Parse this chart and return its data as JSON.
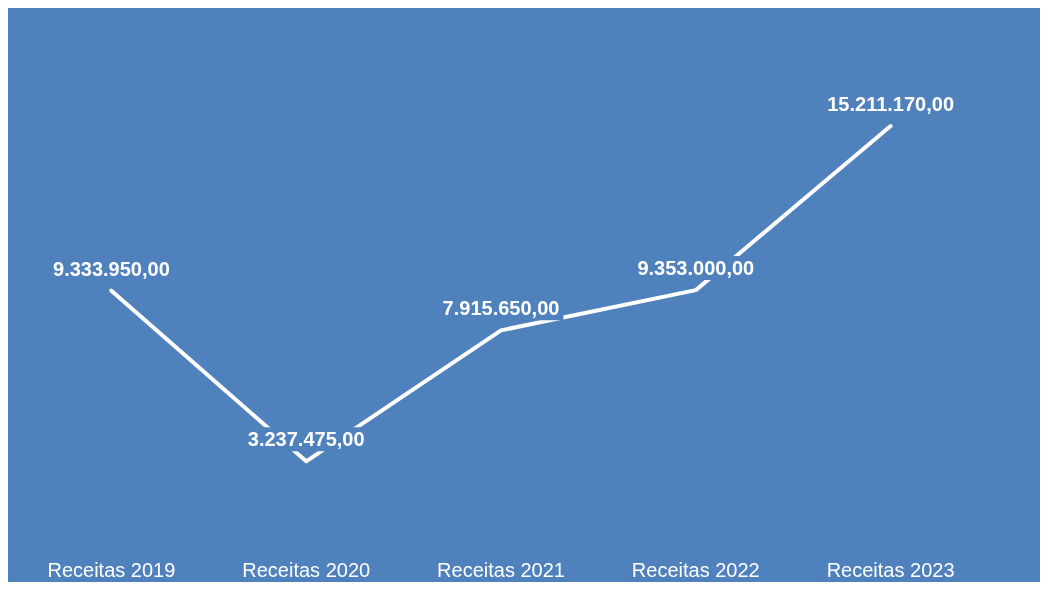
{
  "chart_data": {
    "type": "line",
    "categories": [
      "Receitas 2019",
      "Receitas 2020",
      "Receitas 2021",
      "Receitas 2022",
      "Receitas 2023"
    ],
    "series": [
      {
        "color": "#ffffff",
        "values": [
          9333950,
          3237475,
          7915650,
          9353000,
          15211170
        ],
        "value_labels": [
          "9.333.950,00",
          "3.237.475,00",
          "7.915.650,00",
          "9.353.000,00",
          "15.211.170,00"
        ]
      }
    ],
    "marker": "none",
    "grid": false
  }
}
